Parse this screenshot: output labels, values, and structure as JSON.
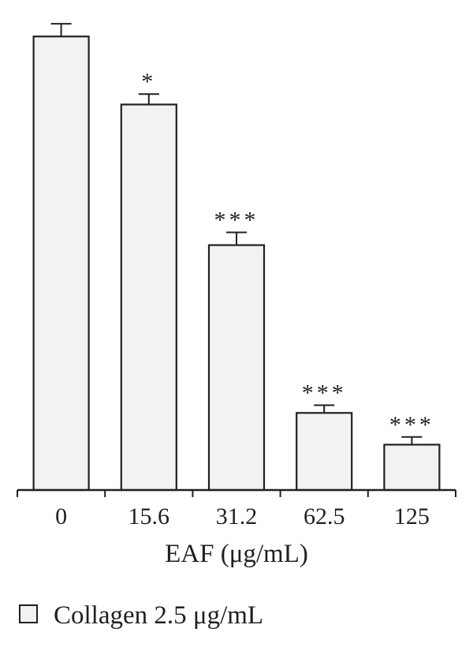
{
  "chart_data": {
    "type": "bar",
    "categories": [
      "0",
      "15.6",
      "31.2",
      "62.5",
      "125"
    ],
    "values": [
      100,
      85,
      54,
      17,
      10
    ],
    "errors": [
      2.8,
      2.3,
      2.8,
      1.7,
      1.7
    ],
    "significance": [
      "",
      "*",
      "***",
      "***",
      "***"
    ],
    "xlabel": "EAF (μg/mL)",
    "ylabel": "",
    "ylim": [
      0,
      107
    ],
    "grid": false,
    "legend": [
      {
        "label": "Collagen 2.5 μg/mL",
        "color": "#f2f2f2"
      }
    ],
    "legend_placement": "bottom-left",
    "colors": {
      "bar_fill": "#f2f2f2",
      "stroke": "#231f20"
    }
  }
}
